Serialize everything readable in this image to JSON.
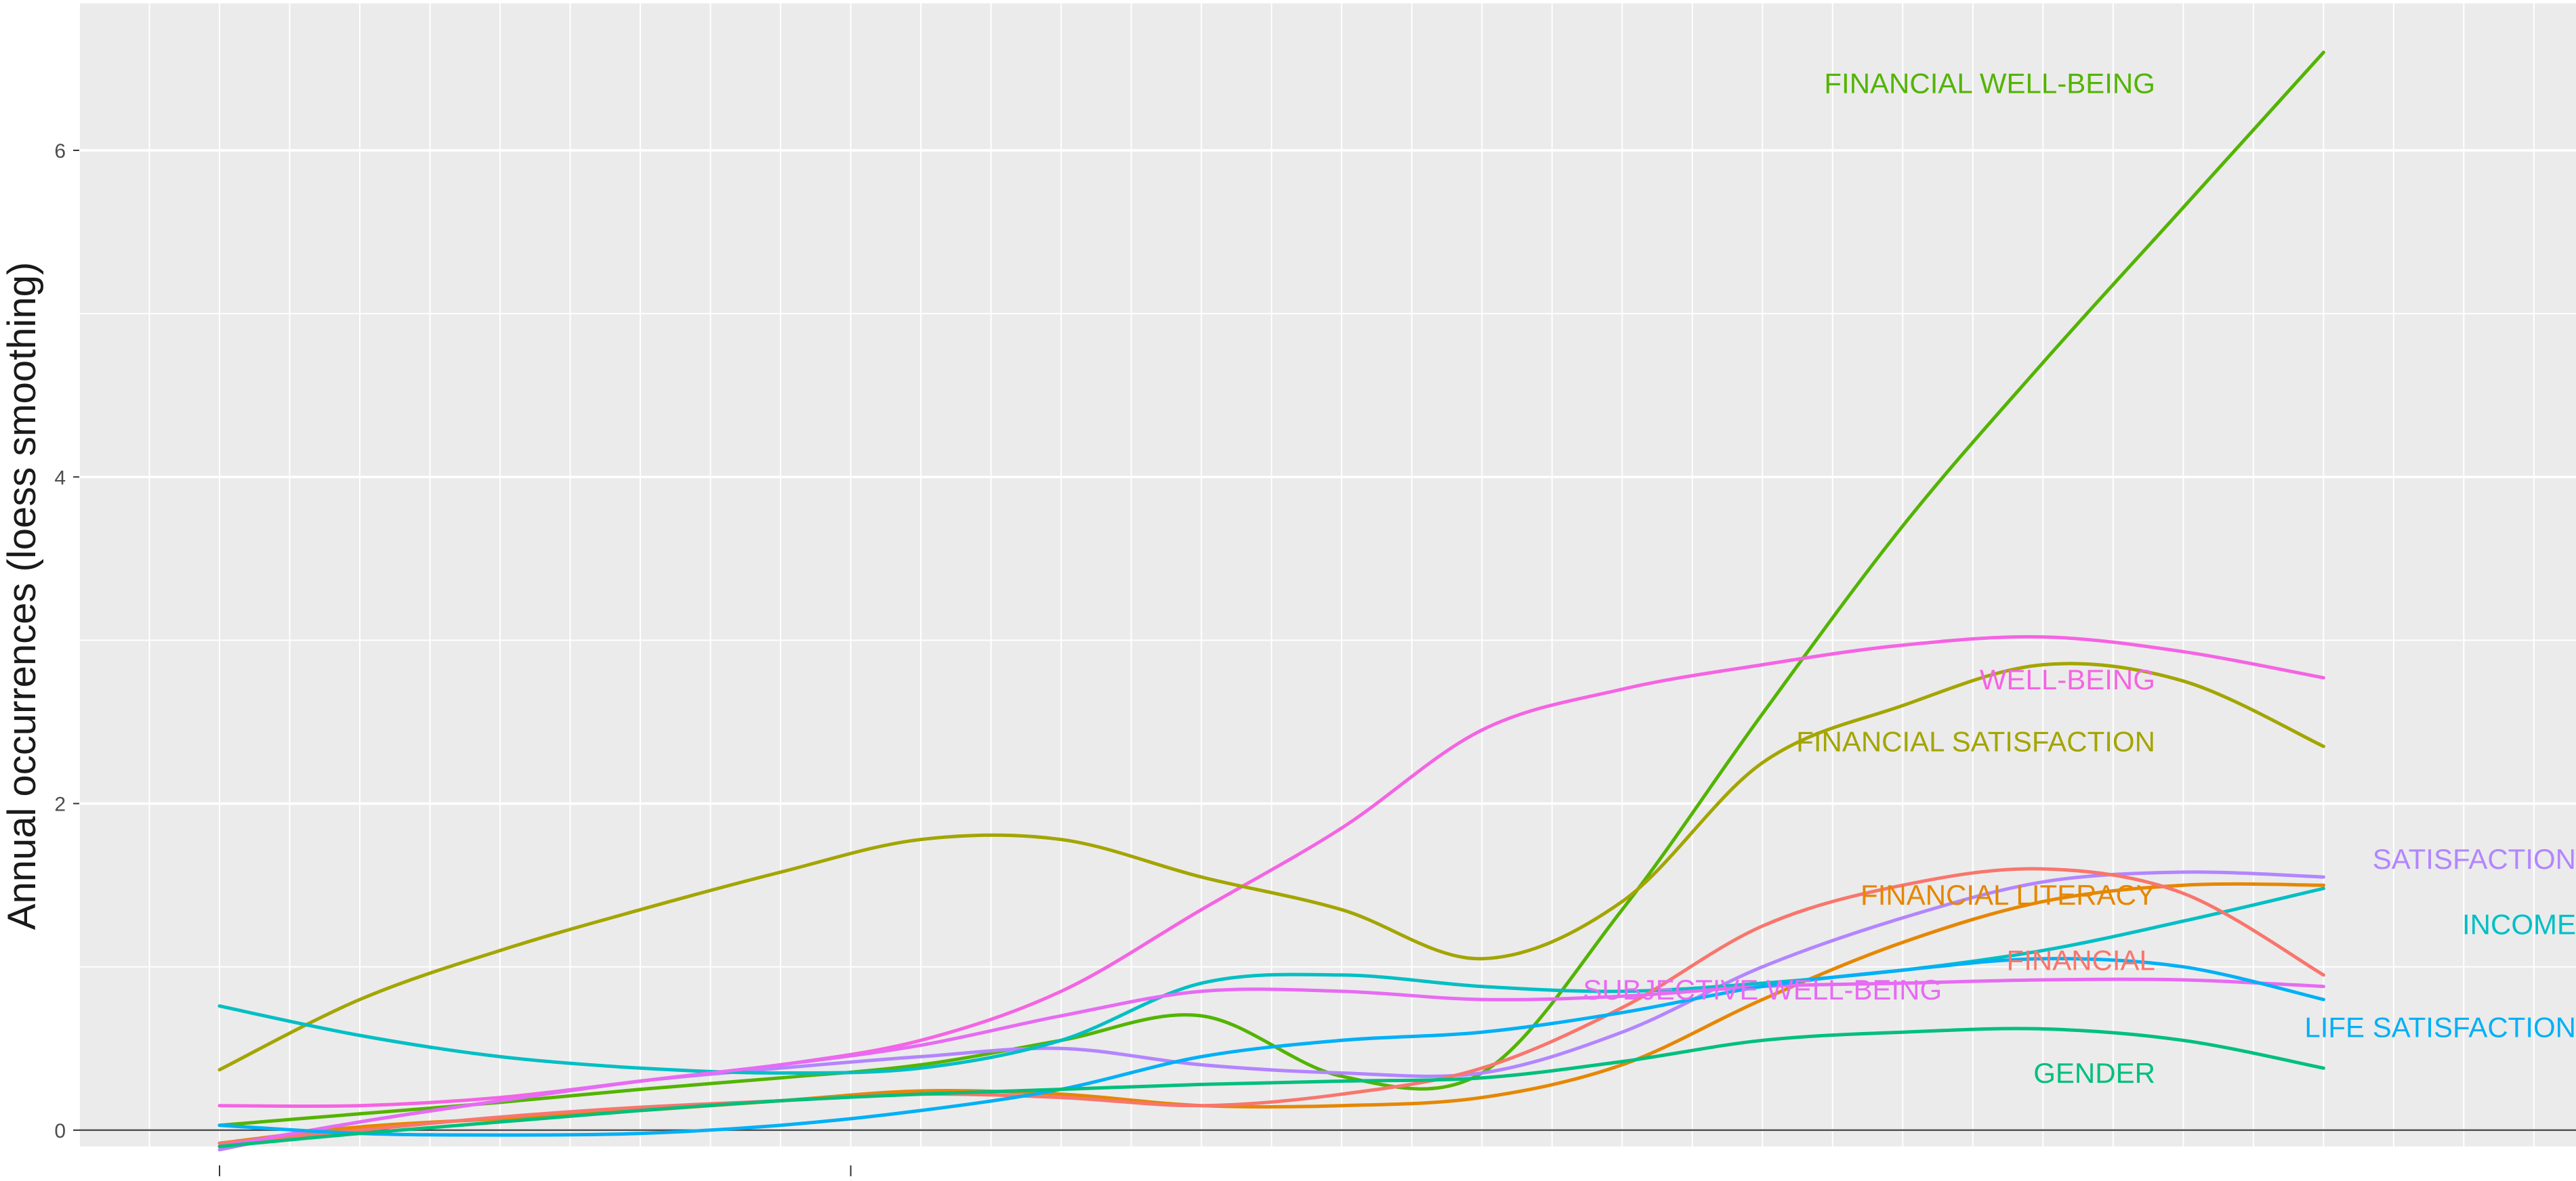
{
  "chart_data": {
    "type": "line",
    "xlabel": "",
    "ylabel": "Annual occurrences (loess smoothing)",
    "x": [
      0,
      1,
      2,
      3,
      4,
      5,
      6,
      7,
      8,
      9,
      10,
      11,
      12,
      13,
      14,
      15
    ],
    "xlim": [
      -1.0,
      16.8
    ],
    "ylim": [
      -0.1,
      6.9
    ],
    "yticks": [
      0,
      2,
      4,
      6
    ],
    "xticks_marked": [
      0,
      4.5
    ],
    "grid": true,
    "legend": "none (direct labels at line ends)",
    "series": [
      {
        "name": "FINANCIAL WELL-BEING",
        "color": "#53b400",
        "values": [
          0.03,
          0.1,
          0.17,
          0.25,
          0.32,
          0.4,
          0.55,
          0.7,
          0.33,
          0.35,
          1.35,
          2.55,
          3.7,
          4.7,
          5.65,
          6.6
        ]
      },
      {
        "name": "WELL-BEING",
        "color": "#f564e3",
        "values": [
          0.15,
          0.15,
          0.2,
          0.3,
          0.4,
          0.55,
          0.85,
          1.35,
          1.85,
          2.45,
          2.7,
          2.85,
          2.97,
          3.02,
          2.93,
          2.77
        ]
      },
      {
        "name": "FINANCIAL SATISFACTION",
        "color": "#a3a500",
        "values": [
          0.37,
          0.8,
          1.1,
          1.35,
          1.58,
          1.78,
          1.78,
          1.55,
          1.35,
          1.05,
          1.4,
          2.25,
          2.6,
          2.85,
          2.75,
          2.35
        ]
      },
      {
        "name": "SATISFACTION",
        "color": "#b385ff",
        "values": [
          -0.12,
          0.05,
          0.18,
          0.3,
          0.38,
          0.45,
          0.5,
          0.4,
          0.35,
          0.35,
          0.6,
          1.0,
          1.3,
          1.52,
          1.58,
          1.55
        ]
      },
      {
        "name": "FINANCIAL LITERACY",
        "color": "#e58700",
        "values": [
          -0.08,
          0.02,
          0.07,
          0.12,
          0.18,
          0.24,
          0.22,
          0.15,
          0.15,
          0.2,
          0.4,
          0.8,
          1.15,
          1.4,
          1.5,
          1.5
        ]
      },
      {
        "name": "INCOME",
        "color": "#00bfc4",
        "values": [
          0.76,
          0.58,
          0.45,
          0.38,
          0.35,
          0.38,
          0.55,
          0.9,
          0.95,
          0.88,
          0.85,
          0.9,
          0.98,
          1.1,
          1.28,
          1.48
        ]
      },
      {
        "name": "FINANCIAL",
        "color": "#f8766d",
        "values": [
          -0.08,
          0.0,
          0.08,
          0.14,
          0.18,
          0.22,
          0.2,
          0.15,
          0.22,
          0.38,
          0.75,
          1.25,
          1.5,
          1.6,
          1.45,
          0.95
        ]
      },
      {
        "name": "SUBJECTIVE WELL-BEING",
        "color": "#e76bf3",
        "values": [
          -0.1,
          0.05,
          0.18,
          0.3,
          0.4,
          0.52,
          0.7,
          0.85,
          0.85,
          0.8,
          0.82,
          0.88,
          0.9,
          0.92,
          0.92,
          0.88
        ]
      },
      {
        "name": "LIFE SATISFACTION",
        "color": "#00b0f6",
        "values": [
          0.03,
          -0.02,
          -0.03,
          -0.02,
          0.03,
          0.12,
          0.25,
          0.45,
          0.55,
          0.6,
          0.72,
          0.88,
          0.98,
          1.05,
          1.0,
          0.8
        ]
      },
      {
        "name": "GENDER",
        "color": "#00bf7d",
        "values": [
          -0.1,
          -0.02,
          0.05,
          0.12,
          0.18,
          0.22,
          0.25,
          0.28,
          0.3,
          0.32,
          0.42,
          0.55,
          0.6,
          0.62,
          0.55,
          0.38
        ]
      }
    ]
  }
}
